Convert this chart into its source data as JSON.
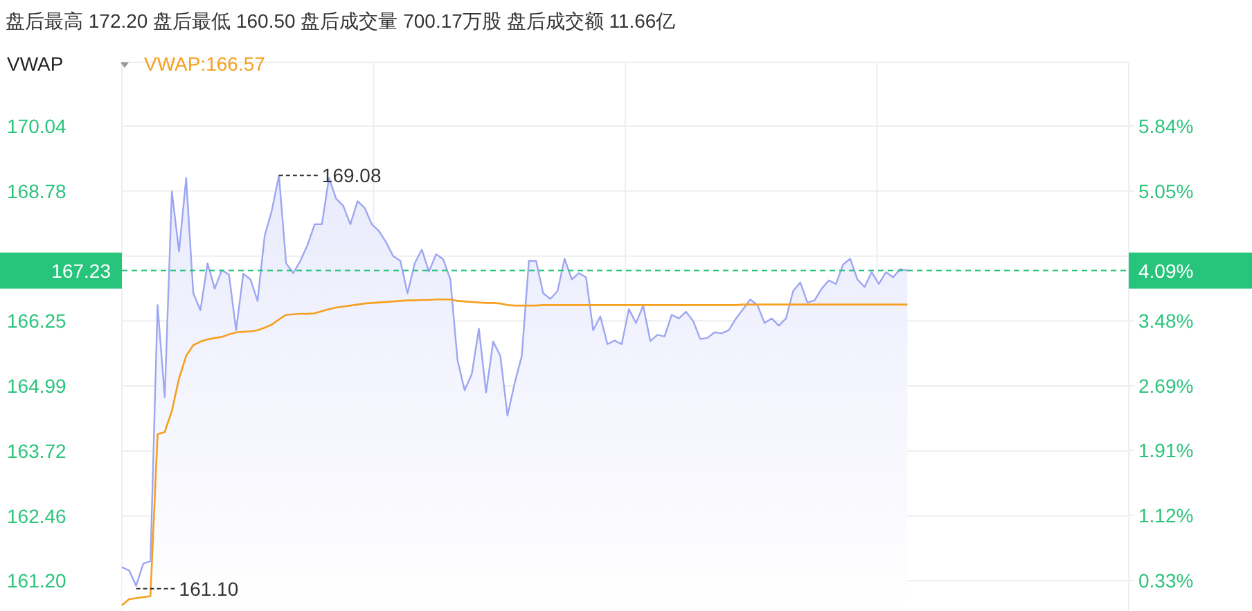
{
  "chart_data": {
    "type": "line",
    "title": "盘后最高 172.20 盘后最低 160.50 盘后成交量 700.17万股 盘后成交额 11.66亿",
    "subtitle": "VWAP",
    "categories": [
      null,
      null,
      null,
      null,
      null,
      null,
      null,
      null,
      null,
      null,
      null,
      null,
      null,
      null,
      null,
      null,
      null,
      null,
      null,
      null,
      null,
      null,
      null,
      null,
      null,
      null,
      null,
      null,
      null,
      null,
      null,
      null,
      null,
      null,
      null,
      null,
      null,
      null,
      null,
      null,
      null,
      null,
      null,
      null,
      null,
      null,
      null,
      null,
      null,
      null,
      null,
      null,
      null,
      null,
      null,
      null,
      null,
      null,
      null,
      null,
      null,
      null,
      null,
      null,
      null,
      null,
      null,
      null,
      null,
      null,
      null,
      null,
      null,
      null,
      null,
      null,
      null,
      null,
      null,
      null,
      null,
      null,
      null,
      null,
      null,
      null,
      null,
      null,
      null,
      null,
      null,
      null,
      null,
      null,
      null,
      null,
      null,
      null,
      null,
      null,
      null,
      null,
      null,
      null,
      null,
      null,
      null,
      null,
      null,
      null,
      null,
      null,
      null,
      null,
      null,
      null,
      null,
      null,
      null,
      null,
      null,
      null,
      null,
      null,
      null,
      null,
      null,
      null,
      null,
      null,
      null,
      null,
      null,
      null,
      null,
      null,
      null,
      null,
      null,
      null,
      null,
      null
    ],
    "series": [
      {
        "type": "area",
        "color": "#9da6f2",
        "values": [
          161.46,
          161.4,
          161.1,
          161.53,
          161.58,
          166.56,
          164.77,
          168.77,
          167.6,
          169.03,
          166.79,
          166.46,
          167.37,
          166.88,
          167.24,
          167.15,
          166.07,
          167.17,
          167.06,
          166.64,
          167.91,
          168.4,
          169.08,
          167.37,
          167.18,
          167.42,
          167.73,
          168.13,
          168.13,
          169.03,
          168.63,
          168.49,
          168.13,
          168.58,
          168.45,
          168.13,
          168.0,
          167.78,
          167.51,
          167.42,
          166.79,
          167.37,
          167.64,
          167.21,
          167.55,
          167.45,
          167.06,
          165.49,
          164.9,
          165.22,
          166.1,
          164.86,
          165.85,
          165.57,
          164.41,
          165.04,
          165.57,
          167.42,
          167.42,
          166.79,
          166.68,
          166.83,
          167.46,
          167.06,
          167.18,
          167.1,
          166.07,
          166.34,
          165.8,
          165.87,
          165.8,
          166.48,
          166.21,
          166.55,
          165.86,
          165.98,
          165.95,
          166.37,
          166.3,
          166.43,
          166.25,
          165.9,
          165.92,
          166.03,
          166.01,
          166.07,
          166.3,
          166.48,
          166.67,
          166.56,
          166.21,
          166.3,
          166.16,
          166.3,
          166.83,
          167.0,
          166.61,
          166.65,
          166.88,
          167.04,
          166.97,
          167.35,
          167.46,
          167.06,
          166.91,
          167.2,
          166.97,
          167.2,
          167.1,
          167.26,
          167.23,
          null,
          null,
          null,
          null,
          null,
          null,
          null,
          null,
          null,
          null,
          null,
          null,
          null,
          null,
          null,
          null,
          null,
          null,
          null,
          null,
          null,
          null,
          null,
          null,
          null,
          null,
          null,
          null,
          null,
          null,
          null
        ]
      },
      {
        "name": "VWAP:166.57",
        "color": "#f5a01e",
        "values": [
          160.72,
          160.84,
          160.86,
          160.88,
          160.9,
          164.05,
          164.09,
          164.5,
          165.13,
          165.57,
          165.78,
          165.85,
          165.89,
          165.92,
          165.94,
          165.99,
          166.03,
          166.04,
          166.05,
          166.07,
          166.12,
          166.18,
          166.28,
          166.37,
          166.38,
          166.39,
          166.39,
          166.4,
          166.44,
          166.48,
          166.51,
          166.53,
          166.55,
          166.57,
          166.59,
          166.6,
          166.61,
          166.62,
          166.63,
          166.64,
          166.65,
          166.65,
          166.66,
          166.66,
          166.67,
          166.67,
          166.67,
          166.64,
          166.63,
          166.62,
          166.61,
          166.6,
          166.6,
          166.59,
          166.56,
          166.55,
          166.55,
          166.55,
          166.55,
          166.56,
          166.56,
          166.56,
          166.56,
          166.56,
          166.56,
          166.56,
          166.56,
          166.56,
          166.56,
          166.56,
          166.56,
          166.56,
          166.56,
          166.56,
          166.56,
          166.56,
          166.56,
          166.56,
          166.56,
          166.56,
          166.56,
          166.56,
          166.56,
          166.56,
          166.56,
          166.56,
          166.56,
          166.57,
          166.57,
          166.57,
          166.57,
          166.57,
          166.57,
          166.57,
          166.57,
          166.57,
          166.57,
          166.57,
          166.57,
          166.57,
          166.57,
          166.57,
          166.57,
          166.57,
          166.57,
          166.57,
          166.57,
          166.57,
          166.57,
          166.57,
          166.57,
          null,
          null,
          null,
          null,
          null,
          null,
          null,
          null,
          null,
          null,
          null,
          null,
          null,
          null,
          null,
          null,
          null,
          null,
          null,
          null,
          null,
          null,
          null,
          null,
          null,
          null,
          null,
          null,
          null,
          null,
          null
        ]
      }
    ],
    "ylim": [
      160.61,
      171.28
    ],
    "yticks": [
      {
        "value": 161.2,
        "label": "161.20"
      },
      162.46,
      163.72,
      164.99,
      166.25,
      {
        "value": 167.51,
        "label": null
      },
      168.78,
      170.04
    ],
    "y2lim": [
      -0.04,
      6.61
    ],
    "y2ticks": [
      {
        "value": 0.33,
        "label": "0.33%"
      },
      {
        "value": 1.12,
        "label": "1.12%"
      },
      {
        "value": 1.91,
        "label": "1.91%"
      },
      {
        "value": 2.69,
        "label": "2.69%"
      },
      {
        "value": 3.48,
        "label": "3.48%"
      },
      {
        "value": 4.27,
        "label": null
      },
      {
        "value": 5.05,
        "label": "5.05%"
      },
      {
        "value": 5.84,
        "label": "5.84%"
      }
    ],
    "ref_lines": [
      {
        "axis": "y",
        "value": 167.23,
        "label": "167.23",
        "color": "#27c57b",
        "line_style": "dashed"
      }
    ],
    "annotations": [
      "169.08",
      "161.10",
      "4.09%"
    ],
    "grid": true,
    "legend": "top left"
  }
}
